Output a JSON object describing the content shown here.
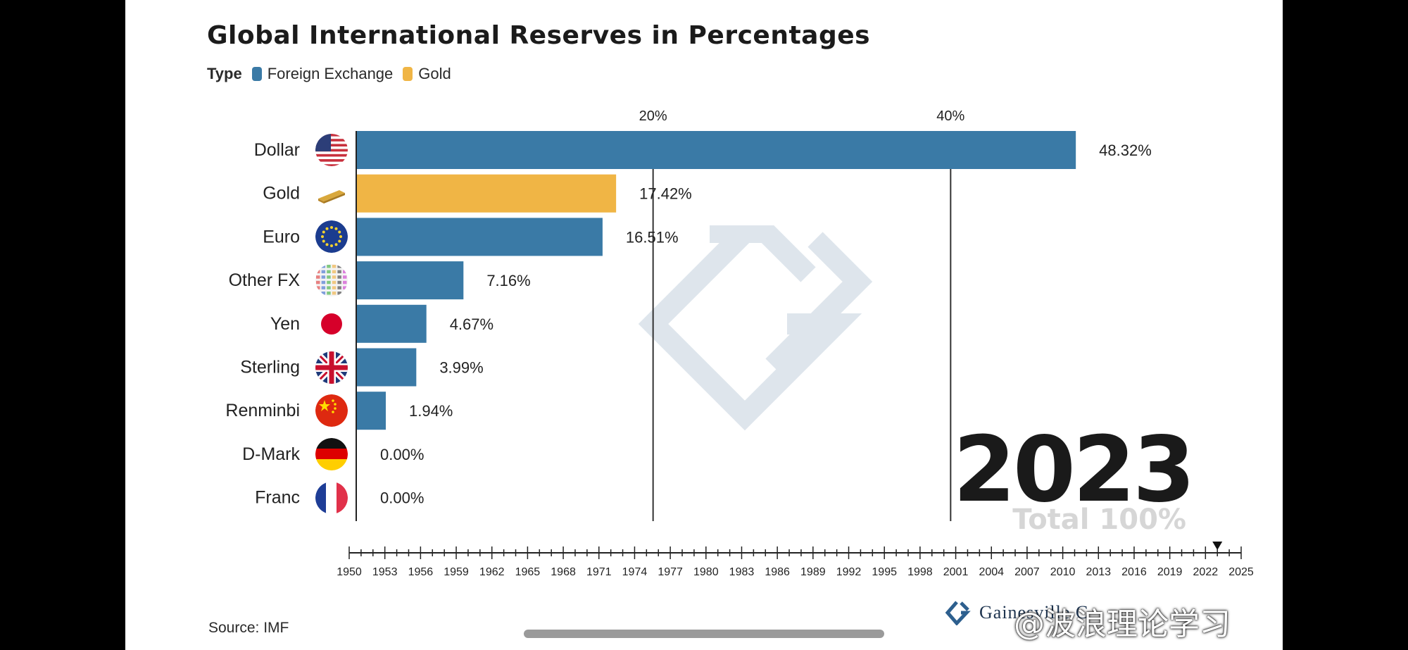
{
  "title": "Global International Reserves in Percentages",
  "legend": {
    "label": "Type",
    "items": [
      {
        "name": "Foreign Exchange",
        "color": "#3a7aa6"
      },
      {
        "name": "Gold",
        "color": "#f0b545"
      }
    ]
  },
  "chart_data": {
    "type": "bar",
    "orientation": "horizontal",
    "categories": [
      "Dollar",
      "Gold",
      "Euro",
      "Other FX",
      "Yen",
      "Sterling",
      "Renminbi",
      "D-Mark",
      "Franc"
    ],
    "values": [
      48.32,
      17.42,
      16.51,
      7.16,
      4.67,
      3.99,
      1.94,
      0.0,
      0.0
    ],
    "value_labels": [
      "48.32%",
      "17.42%",
      "16.51%",
      "7.16%",
      "4.67%",
      "3.99%",
      "1.94%",
      "0.00%",
      "0.00%"
    ],
    "types": [
      "Foreign Exchange",
      "Gold",
      "Foreign Exchange",
      "Foreign Exchange",
      "Foreign Exchange",
      "Foreign Exchange",
      "Foreign Exchange",
      "Foreign Exchange",
      "Foreign Exchange"
    ],
    "category_icons": [
      "us-flag-icon",
      "gold-bar-icon",
      "eu-flag-icon",
      "world-flags-icon",
      "japan-flag-icon",
      "uk-flag-icon",
      "china-flag-icon",
      "germany-flag-icon",
      "france-flag-icon"
    ],
    "x_ticks": [
      "20%",
      "40%"
    ],
    "x_tick_values": [
      20,
      40
    ],
    "xlim": [
      0,
      50.3
    ],
    "grid": true,
    "timeline": {
      "years": [
        "1950",
        "1953",
        "1956",
        "1959",
        "1962",
        "1965",
        "1968",
        "1971",
        "1974",
        "1977",
        "1980",
        "1983",
        "1986",
        "1989",
        "1992",
        "1995",
        "1998",
        "2001",
        "2004",
        "2007",
        "2010",
        "2013",
        "2016",
        "2019",
        "2022",
        "2025"
      ],
      "current_year": 2023
    },
    "colors": {
      "Foreign Exchange": "#3a7aa6",
      "Gold": "#f0b545"
    }
  },
  "year_display": "2023",
  "total_text": "Total 100%",
  "source": "Source: IMF",
  "brand": "Gainesville C",
  "watermark": "@波浪理论学习"
}
